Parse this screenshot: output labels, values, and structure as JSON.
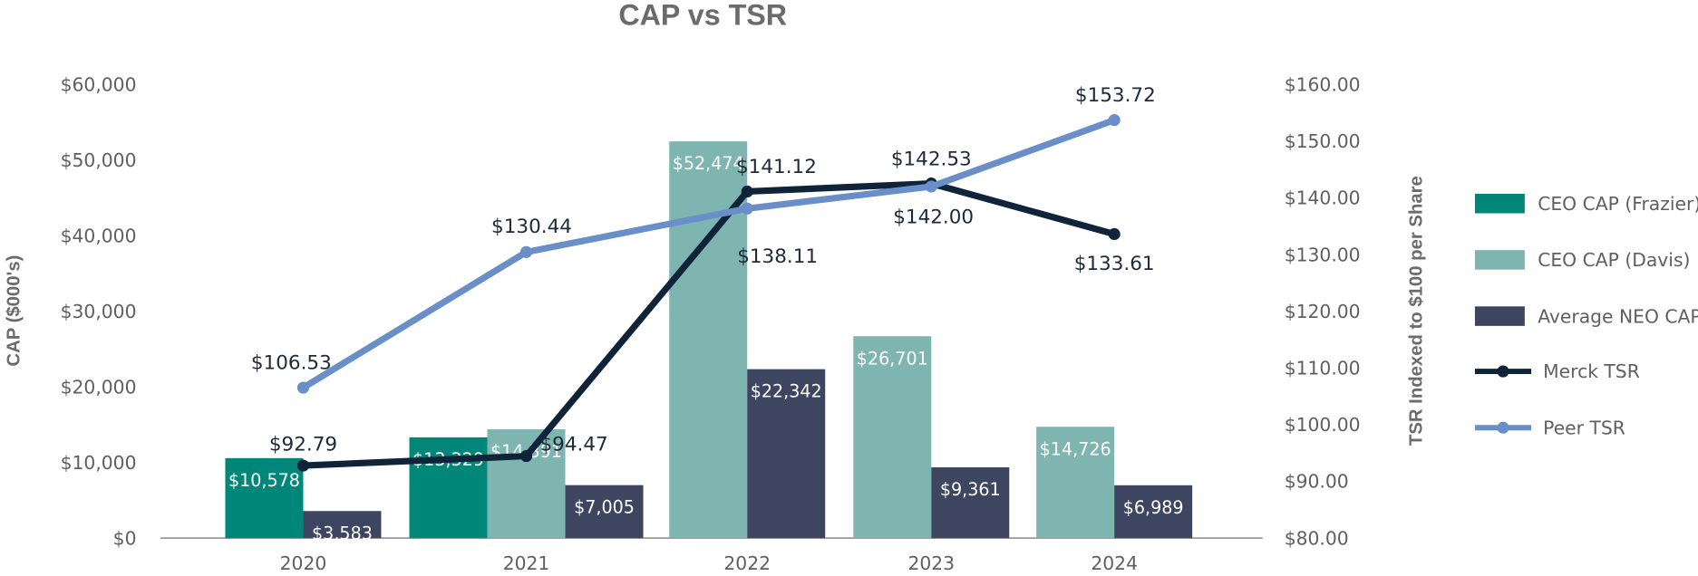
{
  "chart_data": {
    "type": "bar",
    "title": "CAP vs TSR",
    "categories": [
      "2020",
      "2021",
      "2022",
      "2023",
      "2024"
    ],
    "y_left": {
      "label": "CAP ($000's)",
      "range": [
        0,
        60000
      ],
      "ticks": [
        {
          "value": 0,
          "label": "$0"
        },
        {
          "value": 10000,
          "label": "$10,000"
        },
        {
          "value": 20000,
          "label": "$20,000"
        },
        {
          "value": 30000,
          "label": "$30,000"
        },
        {
          "value": 40000,
          "label": "$40,000"
        },
        {
          "value": 50000,
          "label": "$50,000"
        },
        {
          "value": 60000,
          "label": "$60,000"
        }
      ]
    },
    "y_right": {
      "label": "TSR Indexed to $100 per Share",
      "range": [
        80,
        160
      ],
      "ticks": [
        {
          "value": 80,
          "label": "$80.00"
        },
        {
          "value": 90,
          "label": "$90.00"
        },
        {
          "value": 100,
          "label": "$100.00"
        },
        {
          "value": 110,
          "label": "$110.00"
        },
        {
          "value": 120,
          "label": "$120.00"
        },
        {
          "value": 130,
          "label": "$130.00"
        },
        {
          "value": 140,
          "label": "$140.00"
        },
        {
          "value": 150,
          "label": "$150.00"
        },
        {
          "value": 160,
          "label": "$160.00"
        }
      ]
    },
    "bar_series": [
      {
        "name": "CEO CAP (Frazier)",
        "color": "#00877a",
        "values": [
          10578,
          13329,
          null,
          null,
          null
        ],
        "labels": [
          "$10,578",
          "$13,329",
          null,
          null,
          null
        ]
      },
      {
        "name": "CEO CAP (Davis)",
        "color": "#7fb5b0",
        "values": [
          null,
          14391,
          52474,
          26701,
          14726
        ],
        "labels": [
          null,
          "$14,391",
          "$52,474",
          "$26,701",
          "$14,726"
        ]
      },
      {
        "name": "Average NEO CAP",
        "color": "#3e4560",
        "values": [
          3583,
          7005,
          22342,
          9361,
          6989
        ],
        "labels": [
          "$3,583",
          "$7,005",
          "$22,342",
          "$9,361",
          "$6,989"
        ]
      }
    ],
    "line_series": [
      {
        "name": "Merck TSR",
        "color": "#0f2339",
        "values": [
          92.79,
          94.47,
          141.12,
          142.53,
          133.61
        ],
        "labels": [
          "$92.79",
          "$94.47",
          "$141.12",
          "$142.53",
          "$133.61"
        ]
      },
      {
        "name": "Peer TSR",
        "color": "#6a8fc8",
        "values": [
          106.53,
          130.44,
          138.11,
          142.0,
          153.72
        ],
        "labels": [
          "$106.53",
          "$130.44",
          "$138.11",
          "$142.00",
          "$153.72"
        ]
      }
    ],
    "legend": {
      "position": "right"
    }
  }
}
